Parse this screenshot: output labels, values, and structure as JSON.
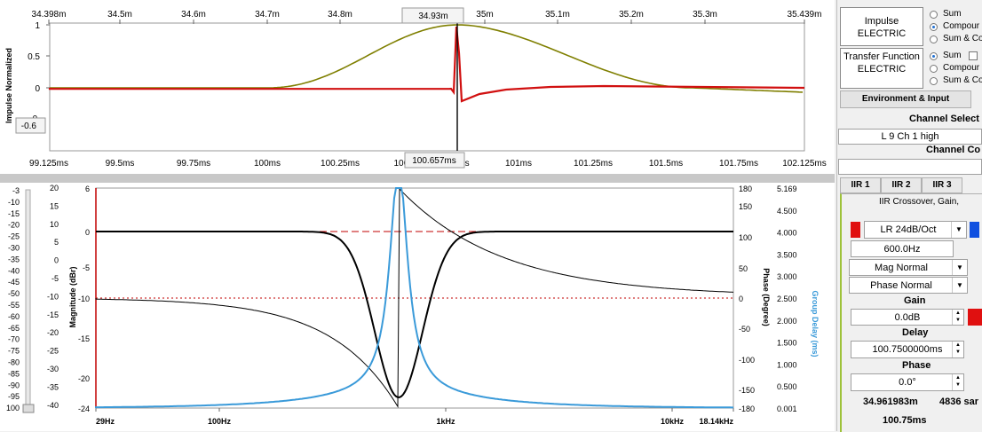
{
  "impulse": {
    "x_top_ticks": [
      "34.398m",
      "34.5m",
      "34.6m",
      "34.7m",
      "34.8m",
      "34.93m",
      "35m",
      "35.1m",
      "35.2m",
      "35.3m",
      "35.439m"
    ],
    "x_bottom_ticks": [
      "99.125ms",
      "99.5ms",
      "99.75ms",
      "100ms",
      "100.25ms",
      "100.5",
      "100.657ms",
      "ms",
      "101ms",
      "101.25ms",
      "101.5ms",
      "101.75ms",
      "102.125ms"
    ],
    "y_ticks": [
      "1",
      "0.5",
      "0",
      "-0.",
      "-0.6"
    ],
    "ylabel": "Impulse Normalized",
    "cursor_top": "34.93m",
    "cursor_bottom": "100.657ms",
    "cursor_y": "-0.6",
    "colors": {
      "compound": "#7f7f00",
      "channel": "#d11010"
    }
  },
  "slider_ticks": [
    "-3",
    "-10",
    "-15",
    "-20",
    "-25",
    "-30",
    "-35",
    "-40",
    "-45",
    "-50",
    "-55",
    "-60",
    "-65",
    "-70",
    "-75",
    "-80",
    "-85",
    "-90",
    "-95",
    "100"
  ],
  "freq": {
    "x_ticks": [
      "29Hz",
      "100Hz",
      "1kHz",
      "10kHz",
      "18.14kHz"
    ],
    "mag_ticks": [
      "20",
      "15",
      "10",
      "5",
      "0",
      "-5",
      "-10",
      "-15",
      "-20",
      "-25",
      "-30",
      "-35",
      "-40"
    ],
    "mag_inner_ticks": [
      "6",
      "0",
      "-5",
      "-10",
      "-15",
      "-20",
      "-24"
    ],
    "mag_label": "Magnitude (dBr)",
    "phase_ticks": [
      "180",
      "150",
      "100",
      "50",
      "0",
      "-50",
      "-100",
      "-150",
      "-180"
    ],
    "phase_label": "Phase (Degree)",
    "gd_ticks": [
      "5.169",
      "4.500",
      "4.000",
      "3.500",
      "3.000",
      "2.500",
      "2.000",
      "1.500",
      "1.000",
      "0.500",
      "0.001"
    ],
    "gd_label": "Group Delay (ms)",
    "colors": {
      "gd": "#3a9ad9",
      "ref": "#c00000"
    }
  },
  "right": {
    "impulse_btn": "Impulse ELECTRIC",
    "impulse_radios": [
      "Sum",
      "Compour",
      "Sum & Co"
    ],
    "impulse_selected": 1,
    "tf_btn": "Transfer Function ELECTRIC",
    "tf_radios": [
      "Sum",
      "Compour",
      "Sum & Co"
    ],
    "tf_selected": 0,
    "env_tab": "Environment & Input",
    "channel_select_label": "Channel Select",
    "channel_value": "L 9 Ch 1 high",
    "channel_co_label": "Channel Co",
    "iir_tabs": [
      "IIR 1",
      "IIR 2",
      "IIR 3"
    ],
    "iir_desc": "IIR Crossover, Gain,",
    "filter_type": "LR 24dB/Oct",
    "filter_freq": "600.0Hz",
    "mag_mode": "Mag Normal",
    "phase_mode": "Phase Normal",
    "gain_label": "Gain",
    "gain_value": "0.0dB",
    "delay_label": "Delay",
    "delay_value": "100.7500000ms",
    "phase_label": "Phase",
    "phase_value": "0.0°",
    "dist_value": "34.961983m",
    "samples_value": "4836 sar",
    "time_value": "100.75ms",
    "accent_red": "#e01010",
    "accent_blue": "#1050e0"
  }
}
